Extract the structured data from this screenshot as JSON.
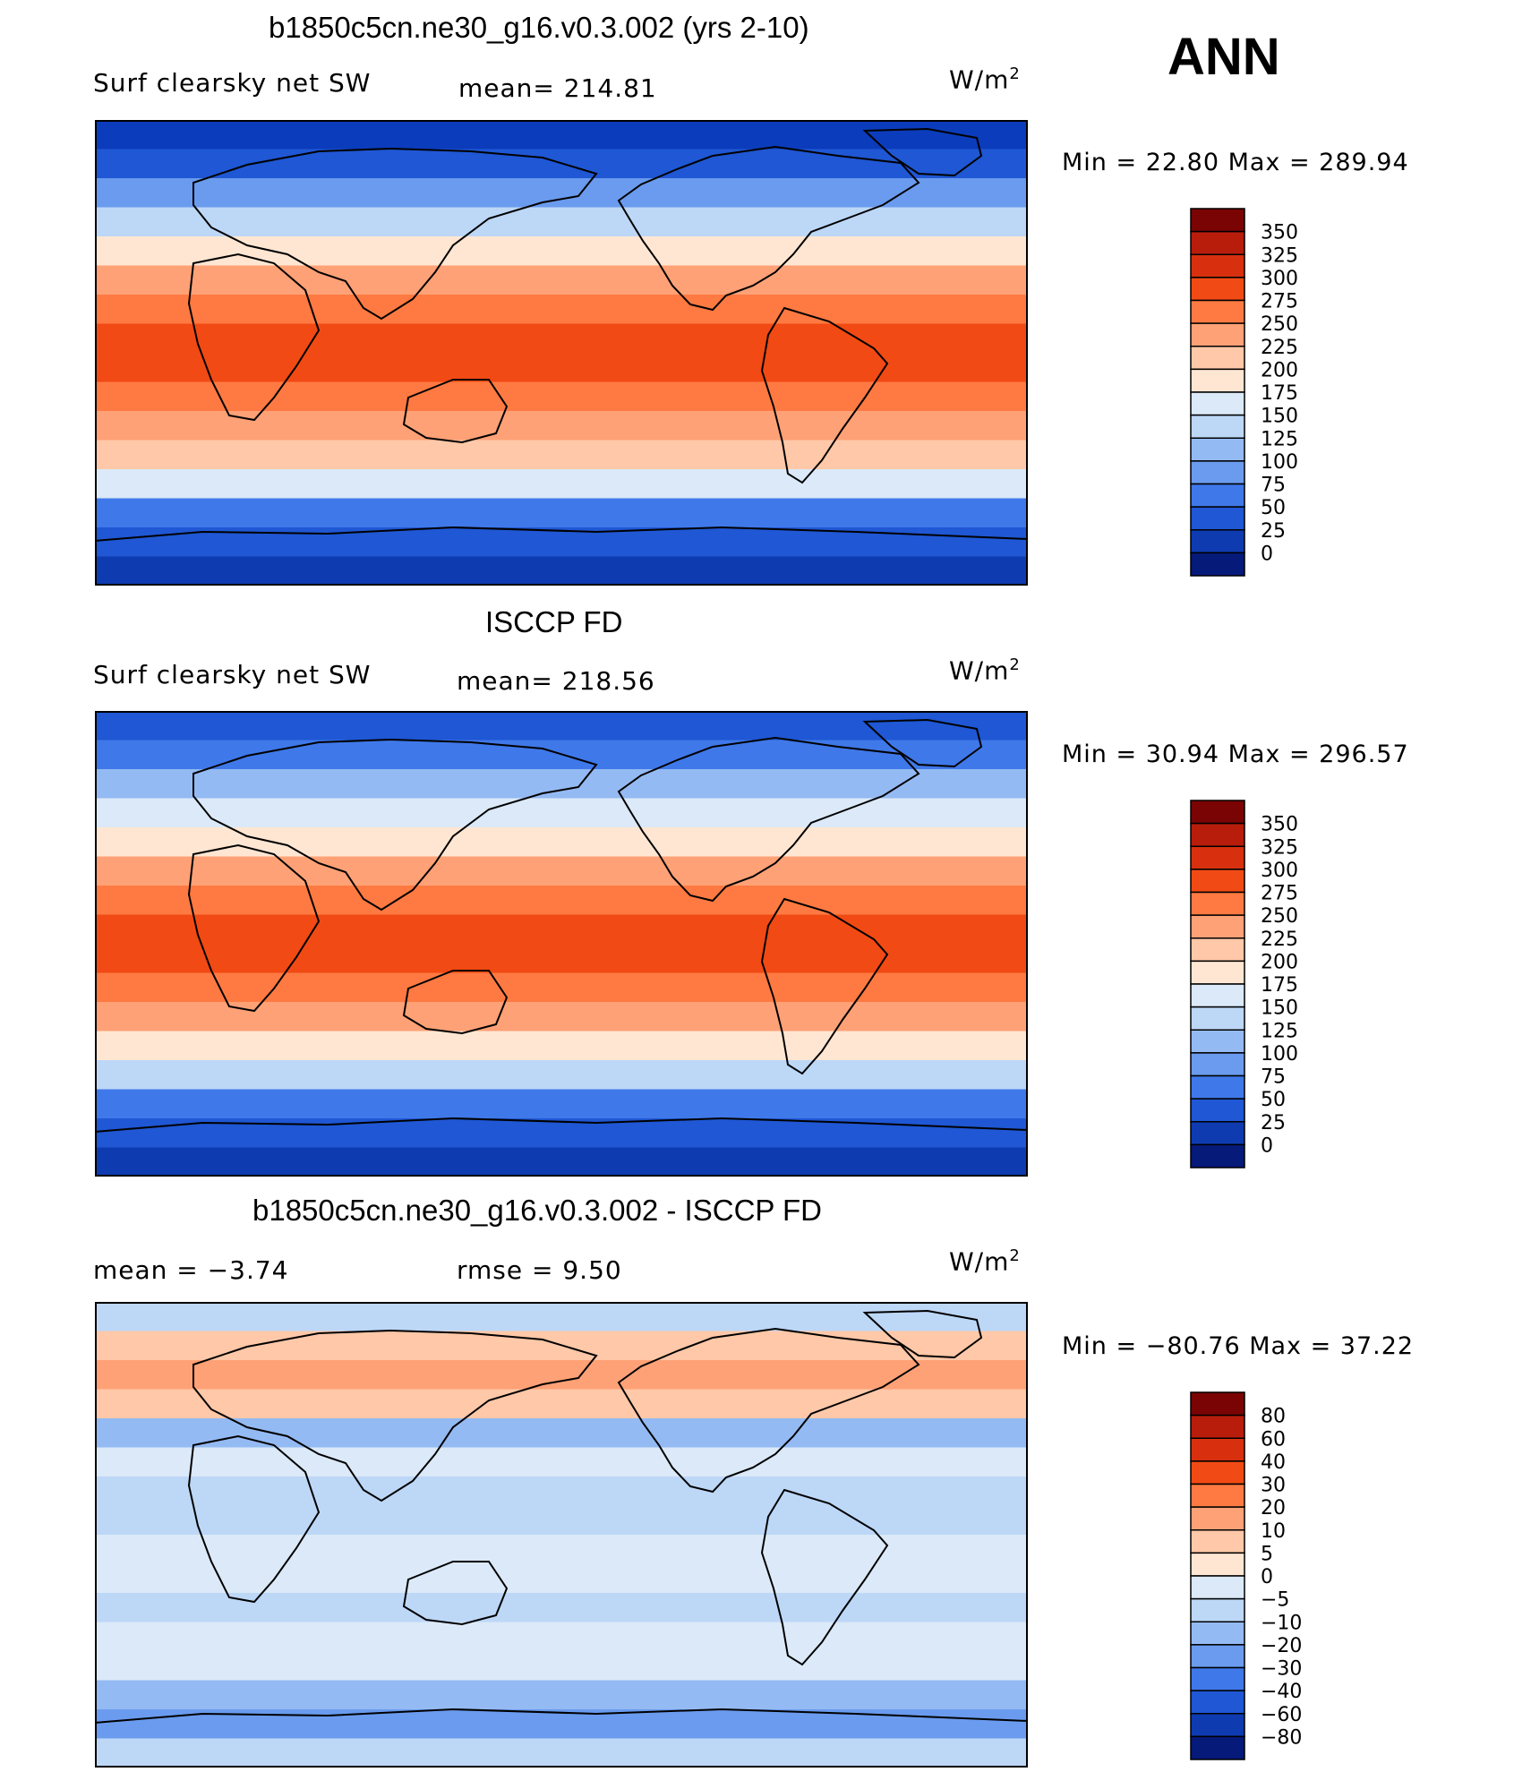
{
  "season": "ANN",
  "panels": [
    {
      "title": "b1850c5cn.ne30_g16.v0.3.002 (yrs 2-10)",
      "left_label": "Surf clearsky net SW",
      "center_label": "mean= 214.81",
      "units": "W/m",
      "units_sup": "2",
      "minmax": "Min =   22.80 Max =  289.94",
      "colorbar": {
        "levels": [
          "350",
          "325",
          "300",
          "275",
          "250",
          "225",
          "200",
          "175",
          "150",
          "125",
          "100",
          "75",
          "50",
          "25",
          "0"
        ],
        "colors": [
          "#7a0403",
          "#b81d0c",
          "#d8300e",
          "#f14a14",
          "#ff7a42",
          "#ffa176",
          "#ffc8a8",
          "#ffe6d2",
          "#dbe9f8",
          "#bdd7f7",
          "#94baf3",
          "#6a9bee",
          "#3f78e9",
          "#1f57d4",
          "#0e3bb0",
          "#061a7a"
        ]
      },
      "map": {
        "bands": [
          "#0b3cbc",
          "#1f57d4",
          "#6a9bee",
          "#bdd7f7",
          "#ffe6d2",
          "#ffa176",
          "#ff7a42",
          "#f14a14",
          "#f14a14",
          "#ff7a42",
          "#ffa176",
          "#ffc8a8",
          "#dbe9f8",
          "#3f78e9",
          "#1f57d4",
          "#0e3bb0"
        ]
      }
    },
    {
      "title": "ISCCP FD",
      "left_label": "Surf clearsky net SW",
      "center_label": "mean= 218.56",
      "units": "W/m",
      "units_sup": "2",
      "minmax": "Min =   30.94 Max =  296.57",
      "colorbar": {
        "levels": [
          "350",
          "325",
          "300",
          "275",
          "250",
          "225",
          "200",
          "175",
          "150",
          "125",
          "100",
          "75",
          "50",
          "25",
          "0"
        ],
        "colors": [
          "#7a0403",
          "#b81d0c",
          "#d8300e",
          "#f14a14",
          "#ff7a42",
          "#ffa176",
          "#ffc8a8",
          "#ffe6d2",
          "#dbe9f8",
          "#bdd7f7",
          "#94baf3",
          "#6a9bee",
          "#3f78e9",
          "#1f57d4",
          "#0e3bb0",
          "#061a7a"
        ]
      },
      "map": {
        "bands": [
          "#1f57d4",
          "#3f78e9",
          "#94baf3",
          "#dbe9f8",
          "#ffe6d2",
          "#ffa176",
          "#ff7a42",
          "#f14a14",
          "#f14a14",
          "#ff7a42",
          "#ffa176",
          "#ffe6d2",
          "#bdd7f7",
          "#3f78e9",
          "#1f57d4",
          "#0e3bb0"
        ]
      }
    },
    {
      "title": "b1850c5cn.ne30_g16.v0.3.002 - ISCCP FD",
      "left_label": "mean =   −3.74",
      "center_label": "rmse =    9.50",
      "units": "W/m",
      "units_sup": "2",
      "minmax": "Min = −80.76 Max =   37.22",
      "colorbar": {
        "levels": [
          "80",
          "60",
          "40",
          "30",
          "20",
          "10",
          "5",
          "0",
          "−5",
          "−10",
          "−20",
          "−30",
          "−40",
          "−60",
          "−80"
        ],
        "colors": [
          "#7a0403",
          "#b81d0c",
          "#d8300e",
          "#f14a14",
          "#ff7a42",
          "#ffa176",
          "#ffc8a8",
          "#ffe6d2",
          "#dbe9f8",
          "#bdd7f7",
          "#94baf3",
          "#6a9bee",
          "#3f78e9",
          "#1f57d4",
          "#0e3bb0",
          "#061a7a"
        ]
      },
      "map": {
        "bands": [
          "#bdd7f7",
          "#ffc8a8",
          "#ffa176",
          "#ffc8a8",
          "#94baf3",
          "#dbe9f8",
          "#bdd7f7",
          "#bdd7f7",
          "#dbe9f8",
          "#dbe9f8",
          "#bdd7f7",
          "#dbe9f8",
          "#dbe9f8",
          "#94baf3",
          "#6a9bee",
          "#bdd7f7"
        ]
      }
    }
  ]
}
